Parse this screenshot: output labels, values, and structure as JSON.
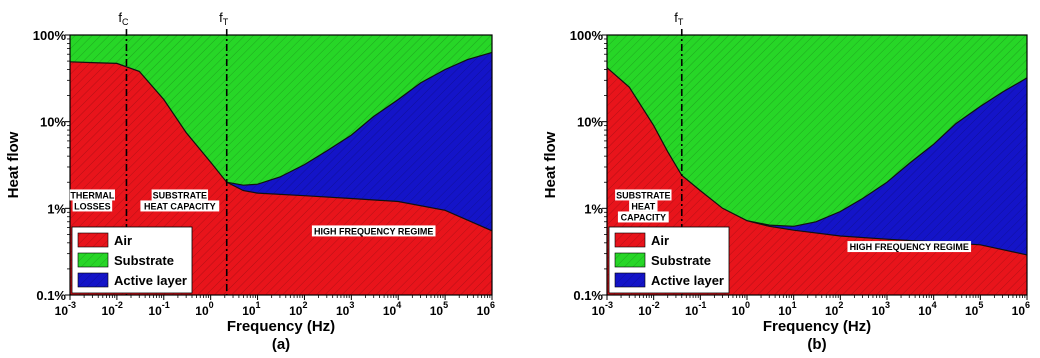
{
  "colors": {
    "air": "#e8141b",
    "substrate": "#27d627",
    "active_layer": "#1414c8",
    "hatch": "#000000"
  },
  "chart_data": [
    {
      "type": "area",
      "stacked": true,
      "percent_stacked": true,
      "panel_label": "(a)",
      "xlabel": "Frequency (Hz)",
      "ylabel": "Heat flow",
      "xscale": "log",
      "yscale": "log",
      "xlim": [
        0.001,
        1000000
      ],
      "ylim": [
        0.1,
        100
      ],
      "x_ticks": [
        {
          "base": "10",
          "exp": "-3",
          "value": 0.001
        },
        {
          "base": "10",
          "exp": "-2",
          "value": 0.01
        },
        {
          "base": "10",
          "exp": "-1",
          "value": 0.1
        },
        {
          "base": "10",
          "exp": "0",
          "value": 1
        },
        {
          "base": "10",
          "exp": "1",
          "value": 10
        },
        {
          "base": "10",
          "exp": "2",
          "value": 100
        },
        {
          "base": "10",
          "exp": "3",
          "value": 1000
        },
        {
          "base": "10",
          "exp": "4",
          "value": 10000
        },
        {
          "base": "10",
          "exp": "5",
          "value": 100000
        },
        {
          "base": "10",
          "exp": "6",
          "value": 1000000
        }
      ],
      "y_ticks": [
        {
          "label": "0.1%",
          "value": 0.1
        },
        {
          "label": "1%",
          "value": 1
        },
        {
          "label": "10%",
          "value": 10
        },
        {
          "label": "100%",
          "value": 100
        }
      ],
      "markers": [
        {
          "base": "f",
          "sub": "C",
          "x": 0.016
        },
        {
          "base": "f",
          "sub": "T",
          "x": 2.2
        }
      ],
      "series": [
        {
          "name": "Air",
          "color_key": "air",
          "points": [
            [
              0.001,
              49
            ],
            [
              0.003,
              48
            ],
            [
              0.01,
              47
            ],
            [
              0.03,
              38
            ],
            [
              0.1,
              18
            ],
            [
              0.3,
              7.5
            ],
            [
              1,
              3.4
            ],
            [
              2.2,
              2.0
            ],
            [
              5,
              1.6
            ],
            [
              10,
              1.5
            ],
            [
              100,
              1.4
            ],
            [
              1000,
              1.3
            ],
            [
              10000,
              1.2
            ],
            [
              100000,
              0.95
            ],
            [
              1000000,
              0.55
            ]
          ]
        },
        {
          "name": "Substrate",
          "color_key": "substrate",
          "boundary": "substrate_top",
          "points": [
            [
              0.001,
              100
            ],
            [
              0.003,
              100
            ],
            [
              0.01,
              100
            ],
            [
              0.1,
              100
            ],
            [
              1,
              100
            ],
            [
              2.2,
              100
            ],
            [
              10,
              100
            ],
            [
              100,
              100
            ],
            [
              1000,
              100
            ],
            [
              10000,
              100
            ],
            [
              100000,
              100
            ],
            [
              1000000,
              100
            ]
          ]
        },
        {
          "name": "Active layer",
          "color_key": "active_layer",
          "boundary_points": [
            [
              2.2,
              2.0
            ],
            [
              5,
              1.85
            ],
            [
              10,
              1.9
            ],
            [
              30,
              2.3
            ],
            [
              100,
              3.2
            ],
            [
              300,
              4.6
            ],
            [
              1000,
              7
            ],
            [
              3000,
              11.5
            ],
            [
              10000,
              18
            ],
            [
              30000,
              28
            ],
            [
              100000,
              40
            ],
            [
              300000,
              52
            ],
            [
              1000000,
              63
            ]
          ]
        }
      ],
      "annotations": [
        {
          "lines": [
            "THERMAL",
            "LOSSES"
          ],
          "x": 0.003,
          "y": 1.3
        },
        {
          "lines": [
            "SUBSTRATE",
            "HEAT CAPACITY"
          ],
          "x": 0.22,
          "y": 1.3
        },
        {
          "lines": [
            "HIGH FREQUENCY REGIME"
          ],
          "x": 3000,
          "y": 0.5
        }
      ],
      "legend": {
        "placement": "bottom-left",
        "entries": [
          "Air",
          "Substrate",
          "Active layer"
        ]
      }
    },
    {
      "type": "area",
      "stacked": true,
      "percent_stacked": true,
      "panel_label": "(b)",
      "xlabel": "Frequency (Hz)",
      "ylabel": "Heat flow",
      "xscale": "log",
      "yscale": "log",
      "xlim": [
        0.001,
        1000000
      ],
      "ylim": [
        0.1,
        100
      ],
      "x_ticks": [
        {
          "base": "10",
          "exp": "-3",
          "value": 0.001
        },
        {
          "base": "10",
          "exp": "-2",
          "value": 0.01
        },
        {
          "base": "10",
          "exp": "-1",
          "value": 0.1
        },
        {
          "base": "10",
          "exp": "0",
          "value": 1
        },
        {
          "base": "10",
          "exp": "1",
          "value": 10
        },
        {
          "base": "10",
          "exp": "2",
          "value": 100
        },
        {
          "base": "10",
          "exp": "3",
          "value": 1000
        },
        {
          "base": "10",
          "exp": "4",
          "value": 10000
        },
        {
          "base": "10",
          "exp": "5",
          "value": 100000
        },
        {
          "base": "10",
          "exp": "6",
          "value": 1000000
        }
      ],
      "y_ticks": [
        {
          "label": "0.1%",
          "value": 0.1
        },
        {
          "label": "1%",
          "value": 1
        },
        {
          "label": "10%",
          "value": 10
        },
        {
          "label": "100%",
          "value": 100
        }
      ],
      "markers": [
        {
          "base": "f",
          "sub": "T",
          "x": 0.04
        }
      ],
      "series": [
        {
          "name": "Air",
          "color_key": "air",
          "points": [
            [
              0.001,
              42
            ],
            [
              0.003,
              25
            ],
            [
              0.01,
              9
            ],
            [
              0.02,
              4.5
            ],
            [
              0.04,
              2.4
            ],
            [
              0.1,
              1.6
            ],
            [
              0.3,
              1.0
            ],
            [
              1,
              0.72
            ],
            [
              3,
              0.62
            ],
            [
              10,
              0.56
            ],
            [
              100,
              0.48
            ],
            [
              1000,
              0.44
            ],
            [
              10000,
              0.41
            ],
            [
              100000,
              0.38
            ],
            [
              1000000,
              0.29
            ]
          ]
        },
        {
          "name": "Substrate",
          "color_key": "substrate",
          "boundary": "substrate_top",
          "points": [
            [
              0.001,
              100
            ],
            [
              0.01,
              100
            ],
            [
              0.1,
              100
            ],
            [
              1,
              100
            ],
            [
              10,
              100
            ],
            [
              100,
              100
            ],
            [
              1000,
              100
            ],
            [
              10000,
              100
            ],
            [
              100000,
              100
            ],
            [
              1000000,
              100
            ]
          ]
        },
        {
          "name": "Active layer",
          "color_key": "active_layer",
          "boundary_points": [
            [
              1,
              0.72
            ],
            [
              3,
              0.64
            ],
            [
              10,
              0.62
            ],
            [
              30,
              0.7
            ],
            [
              100,
              0.92
            ],
            [
              300,
              1.3
            ],
            [
              1000,
              2.0
            ],
            [
              3000,
              3.3
            ],
            [
              10000,
              5.5
            ],
            [
              30000,
              9.5
            ],
            [
              100000,
              15
            ],
            [
              300000,
              22
            ],
            [
              1000000,
              32
            ]
          ]
        }
      ],
      "annotations": [
        {
          "lines": [
            "SUBSTRATE",
            "HEAT",
            "CAPACITY"
          ],
          "x": 0.006,
          "y": 1.3
        },
        {
          "lines": [
            "HIGH FREQUENCY REGIME"
          ],
          "x": 3000,
          "y": 0.33
        }
      ],
      "legend": {
        "placement": "bottom-left",
        "entries": [
          "Air",
          "Substrate",
          "Active layer"
        ]
      }
    }
  ]
}
